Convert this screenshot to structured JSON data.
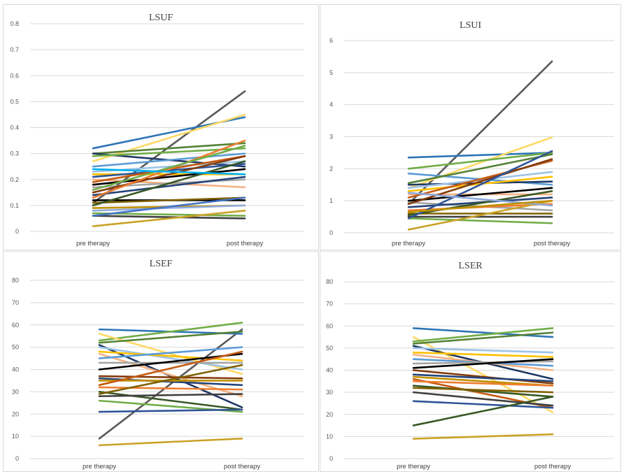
{
  "chart_data": [
    {
      "type": "line",
      "title": "LSUF",
      "categories": [
        "pre therapy",
        "post therapy"
      ],
      "ylim": [
        0,
        0.8
      ],
      "yticks": [
        "0",
        "0.1",
        "0.2",
        "0.3",
        "0.4",
        "0.5",
        "0.6",
        "0.7",
        "0.8"
      ],
      "grid": true,
      "series": [
        {
          "values": [
            0.11,
            0.54
          ],
          "color": "#595959"
        },
        {
          "values": [
            0.32,
            0.44
          ],
          "color": "#2e75b6"
        },
        {
          "values": [
            0.27,
            0.45
          ],
          "color": "#ffd966"
        },
        {
          "values": [
            0.3,
            0.34
          ],
          "color": "#548235"
        },
        {
          "values": [
            0.3,
            0.25
          ],
          "color": "#1f3864"
        },
        {
          "values": [
            0.29,
            0.32
          ],
          "color": "#70ad47"
        },
        {
          "values": [
            0.25,
            0.3
          ],
          "color": "#5b9bd5"
        },
        {
          "values": [
            0.23,
            0.27
          ],
          "color": "#9dc3e6"
        },
        {
          "values": [
            0.22,
            0.22
          ],
          "color": "#ffc000"
        },
        {
          "values": [
            0.21,
            0.26
          ],
          "color": "#2f5597"
        },
        {
          "values": [
            0.2,
            0.17
          ],
          "color": "#f4b183"
        },
        {
          "values": [
            0.19,
            0.29
          ],
          "color": "#c55a11"
        },
        {
          "values": [
            0.18,
            0.24
          ],
          "color": "#000000"
        },
        {
          "values": [
            0.17,
            0.2
          ],
          "color": "#a5a5a5"
        },
        {
          "values": [
            0.15,
            0.29
          ],
          "color": "#843c0c"
        },
        {
          "values": [
            0.14,
            0.21
          ],
          "color": "#264478"
        },
        {
          "values": [
            0.13,
            0.35
          ],
          "color": "#ed7d31"
        },
        {
          "values": [
            0.12,
            0.12
          ],
          "color": "#000000"
        },
        {
          "values": [
            0.11,
            0.13
          ],
          "color": "#7f6000"
        },
        {
          "values": [
            0.1,
            0.27
          ],
          "color": "#385723"
        },
        {
          "values": [
            0.09,
            0.1
          ],
          "color": "#bf9000"
        },
        {
          "values": [
            0.08,
            0.1
          ],
          "color": "#8faadc"
        },
        {
          "values": [
            0.07,
            0.06
          ],
          "color": "#70ad47"
        },
        {
          "values": [
            0.06,
            0.05
          ],
          "color": "#404040"
        },
        {
          "values": [
            0.06,
            0.13
          ],
          "color": "#4472c4"
        },
        {
          "values": [
            0.02,
            0.08
          ],
          "color": "#c9a227"
        },
        {
          "values": [
            0.16,
            0.33
          ],
          "color": "#70ad47"
        },
        {
          "values": [
            0.24,
            0.22
          ],
          "color": "#00b0f0"
        }
      ]
    },
    {
      "type": "line",
      "title": "LSUI",
      "categories": [
        "pre therapy",
        "post therapy"
      ],
      "ylim": [
        0,
        6
      ],
      "yticks": [
        "0",
        "1",
        "2",
        "3",
        "4",
        "5",
        "6"
      ],
      "grid": true,
      "series": [
        {
          "values": [
            0.9,
            5.35
          ],
          "color": "#595959"
        },
        {
          "values": [
            2.35,
            2.5
          ],
          "color": "#2e75b6"
        },
        {
          "values": [
            1.4,
            2.98
          ],
          "color": "#ffd966"
        },
        {
          "values": [
            2.0,
            2.5
          ],
          "color": "#70ad47"
        },
        {
          "values": [
            1.85,
            1.5
          ],
          "color": "#5b9bd5"
        },
        {
          "values": [
            1.55,
            2.45
          ],
          "color": "#548235"
        },
        {
          "values": [
            1.5,
            1.6
          ],
          "color": "#1f3864"
        },
        {
          "values": [
            1.4,
            1.9
          ],
          "color": "#9dc3e6"
        },
        {
          "values": [
            1.3,
            1.75
          ],
          "color": "#ffc000"
        },
        {
          "values": [
            1.2,
            1.2
          ],
          "color": "#f4b183"
        },
        {
          "values": [
            1.1,
            2.25
          ],
          "color": "#c55a11"
        },
        {
          "values": [
            1.0,
            1.4
          ],
          "color": "#000000"
        },
        {
          "values": [
            0.95,
            0.7
          ],
          "color": "#a5a5a5"
        },
        {
          "values": [
            0.9,
            2.3
          ],
          "color": "#843c0c"
        },
        {
          "values": [
            0.8,
            1.1
          ],
          "color": "#264478"
        },
        {
          "values": [
            0.7,
            0.9
          ],
          "color": "#ed7d31"
        },
        {
          "values": [
            0.6,
            0.6
          ],
          "color": "#7f6000"
        },
        {
          "values": [
            0.55,
            1.3
          ],
          "color": "#385723"
        },
        {
          "values": [
            0.5,
            0.5
          ],
          "color": "#404040"
        },
        {
          "values": [
            0.45,
            0.3
          ],
          "color": "#70ad47"
        },
        {
          "values": [
            0.45,
            2.55
          ],
          "color": "#2f5597"
        },
        {
          "values": [
            0.1,
            1.0
          ],
          "color": "#c9a227"
        },
        {
          "values": [
            1.25,
            0.85
          ],
          "color": "#8faadc"
        },
        {
          "values": [
            0.65,
            1.0
          ],
          "color": "#bf9000"
        }
      ]
    },
    {
      "type": "line",
      "title": "LSEF",
      "categories": [
        "pre therapy",
        "post therapy"
      ],
      "ylim": [
        0,
        80
      ],
      "yticks": [
        "0",
        "10",
        "20",
        "30",
        "40",
        "50",
        "60",
        "70",
        "80"
      ],
      "grid": true,
      "series": [
        {
          "values": [
            9,
            58
          ],
          "color": "#595959"
        },
        {
          "values": [
            58,
            56
          ],
          "color": "#2e75b6"
        },
        {
          "values": [
            53,
            61
          ],
          "color": "#70ad47"
        },
        {
          "values": [
            56,
            38
          ],
          "color": "#ffd966"
        },
        {
          "values": [
            52,
            57
          ],
          "color": "#548235"
        },
        {
          "values": [
            51,
            23
          ],
          "color": "#1f3864"
        },
        {
          "values": [
            50,
            40
          ],
          "color": "#9dc3e6"
        },
        {
          "values": [
            48,
            44
          ],
          "color": "#ffc000"
        },
        {
          "values": [
            47,
            28
          ],
          "color": "#f4b183"
        },
        {
          "values": [
            45,
            50
          ],
          "color": "#5b9bd5"
        },
        {
          "values": [
            43,
            43
          ],
          "color": "#a5a5a5"
        },
        {
          "values": [
            40,
            47
          ],
          "color": "#000000"
        },
        {
          "values": [
            37,
            36
          ],
          "color": "#843c0c"
        },
        {
          "values": [
            36,
            33
          ],
          "color": "#264478"
        },
        {
          "values": [
            35,
            35
          ],
          "color": "#bf9000"
        },
        {
          "values": [
            33,
            48
          ],
          "color": "#c55a11"
        },
        {
          "values": [
            32,
            31
          ],
          "color": "#ed7d31"
        },
        {
          "values": [
            30,
            22
          ],
          "color": "#385723"
        },
        {
          "values": [
            29,
            42
          ],
          "color": "#7f6000"
        },
        {
          "values": [
            28,
            29
          ],
          "color": "#404040"
        },
        {
          "values": [
            26,
            21
          ],
          "color": "#70ad47"
        },
        {
          "values": [
            21,
            22
          ],
          "color": "#2f5597"
        },
        {
          "values": [
            6,
            9
          ],
          "color": "#c9a227"
        }
      ]
    },
    {
      "type": "line",
      "title": "LSER",
      "categories": [
        "pre therapy",
        "post therapy"
      ],
      "ylim": [
        0,
        80
      ],
      "yticks": [
        "0",
        "10",
        "20",
        "30",
        "40",
        "50",
        "60",
        "70",
        "80"
      ],
      "grid": true,
      "series": [
        {
          "values": [
            59,
            55
          ],
          "color": "#2e75b6"
        },
        {
          "values": [
            55,
            21
          ],
          "color": "#ffd966"
        },
        {
          "values": [
            53,
            59
          ],
          "color": "#70ad47"
        },
        {
          "values": [
            52,
            57
          ],
          "color": "#548235"
        },
        {
          "values": [
            51,
            36
          ],
          "color": "#1f3864"
        },
        {
          "values": [
            50,
            48
          ],
          "color": "#9dc3e6"
        },
        {
          "values": [
            48,
            46
          ],
          "color": "#ffc000"
        },
        {
          "values": [
            47,
            40
          ],
          "color": "#f4b183"
        },
        {
          "values": [
            45,
            42
          ],
          "color": "#5b9bd5"
        },
        {
          "values": [
            43,
            44
          ],
          "color": "#a5a5a5"
        },
        {
          "values": [
            41,
            45
          ],
          "color": "#000000"
        },
        {
          "values": [
            40,
            34
          ],
          "color": "#843c0c"
        },
        {
          "values": [
            38,
            35
          ],
          "color": "#264478"
        },
        {
          "values": [
            37,
            33
          ],
          "color": "#bf9000"
        },
        {
          "values": [
            36,
            23
          ],
          "color": "#c55a11"
        },
        {
          "values": [
            35,
            33
          ],
          "color": "#ed7d31"
        },
        {
          "values": [
            33,
            28
          ],
          "color": "#385723"
        },
        {
          "values": [
            32,
            30
          ],
          "color": "#7f6000"
        },
        {
          "values": [
            30,
            24
          ],
          "color": "#404040"
        },
        {
          "values": [
            26,
            23
          ],
          "color": "#2f5597"
        },
        {
          "values": [
            15,
            28
          ],
          "color": "#385723"
        },
        {
          "values": [
            9,
            11
          ],
          "color": "#c9a227"
        }
      ]
    }
  ]
}
